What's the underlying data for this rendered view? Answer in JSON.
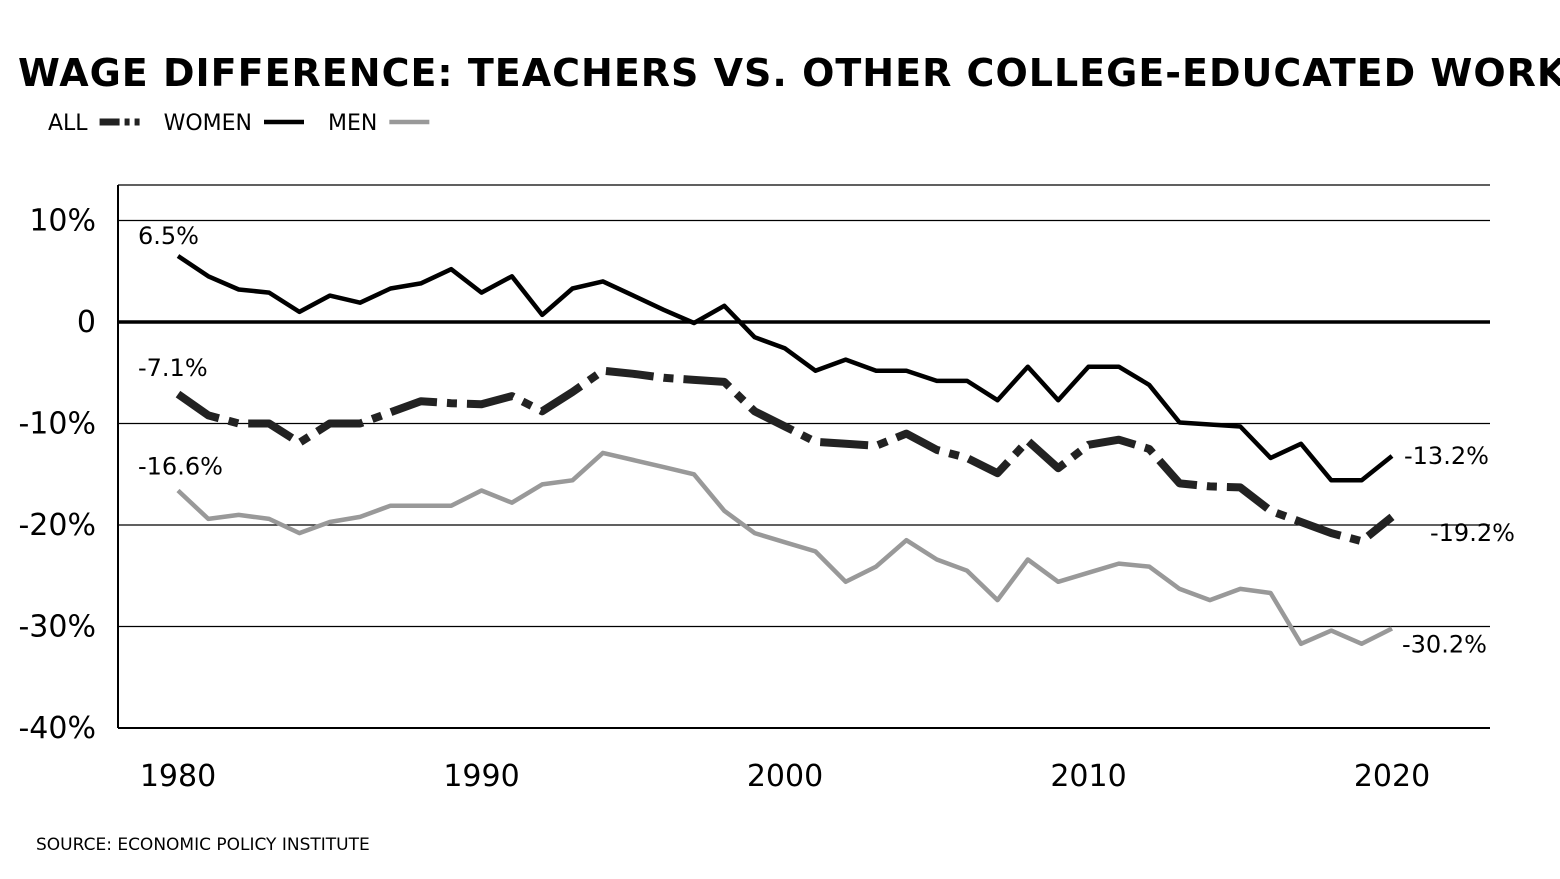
{
  "source": "SOURCE: ECONOMIC POLICY INSTITUTE",
  "chart_data": {
    "type": "line",
    "title": "WAGE DIFFERENCE: TEACHERS VS. OTHER COLLEGE-EDUCATED WORKERS",
    "xlabel": "",
    "ylabel": "",
    "xlim": [
      1978,
      2022
    ],
    "ylim": [
      -40,
      13.5
    ],
    "x_ticks": [
      1980,
      1990,
      2000,
      2010,
      2020
    ],
    "x_tick_labels": [
      "1980",
      "1990",
      "2000",
      "2010",
      "2020"
    ],
    "y_ticks": [
      10,
      0,
      -10,
      -20,
      -30,
      -40
    ],
    "y_tick_labels": [
      "10%",
      "0",
      "-10%",
      "-20%",
      "-30%",
      "-40%"
    ],
    "grid": "horizontal",
    "legend_position": "top-left",
    "x": [
      1980,
      1981,
      1982,
      1983,
      1984,
      1985,
      1986,
      1987,
      1988,
      1989,
      1990,
      1991,
      1992,
      1993,
      1994,
      1995,
      1996,
      1997,
      1998,
      1999,
      2000,
      2001,
      2002,
      2003,
      2004,
      2005,
      2006,
      2007,
      2008,
      2009,
      2010,
      2011,
      2012,
      2013,
      2014,
      2015,
      2016,
      2017,
      2018,
      2019,
      2020
    ],
    "series": [
      {
        "name": "ALL",
        "style": "dashdot",
        "color": "#222222",
        "values": [
          -7.1,
          -9.2,
          -10.0,
          -10.0,
          -11.9,
          -10.0,
          -10.0,
          -8.9,
          -7.8,
          -8.0,
          -8.1,
          -7.3,
          -8.8,
          -6.9,
          -4.8,
          -5.1,
          -5.5,
          -5.7,
          -5.9,
          -8.8,
          -10.3,
          -11.8,
          -12.0,
          -12.2,
          -11.0,
          -12.6,
          -13.4,
          -14.9,
          -11.7,
          -14.4,
          -12.1,
          -11.6,
          -12.5,
          -15.9,
          -16.2,
          -16.3,
          -18.6,
          -19.7,
          -20.8,
          -21.6,
          -19.2
        ],
        "start_label": "-7.1%",
        "end_label": "-19.2%"
      },
      {
        "name": "WOMEN",
        "style": "solid",
        "color": "#000000",
        "values": [
          6.5,
          4.5,
          3.2,
          2.9,
          1.0,
          2.6,
          1.9,
          3.3,
          3.8,
          5.2,
          2.9,
          4.5,
          0.7,
          3.3,
          4.0,
          2.6,
          1.2,
          -0.1,
          1.6,
          -1.5,
          -2.6,
          -4.8,
          -3.7,
          -4.8,
          -4.8,
          -5.8,
          -5.8,
          -7.7,
          -4.4,
          -7.7,
          -4.4,
          -4.4,
          -6.2,
          -9.9,
          -10.1,
          -10.3,
          -13.4,
          -12.0,
          -15.6,
          -15.6,
          -13.2
        ],
        "start_label": "6.5%",
        "end_label": "-13.2%"
      },
      {
        "name": "MEN",
        "style": "solid",
        "color": "#999999",
        "values": [
          -16.6,
          -19.4,
          -19.0,
          -19.4,
          -20.8,
          -19.7,
          -19.2,
          -18.1,
          -18.1,
          -18.1,
          -16.6,
          -17.8,
          -16.0,
          -15.6,
          -12.9,
          -13.6,
          -14.3,
          -15.0,
          -18.6,
          -20.8,
          -21.7,
          -22.6,
          -25.6,
          -24.1,
          -21.5,
          -23.4,
          -24.5,
          -27.4,
          -23.4,
          -25.6,
          -24.7,
          -23.8,
          -24.1,
          -26.3,
          -27.4,
          -26.3,
          -26.7,
          -31.7,
          -30.4,
          -31.7,
          -30.2
        ],
        "start_label": "-16.6%",
        "end_label": "-30.2%"
      }
    ]
  }
}
